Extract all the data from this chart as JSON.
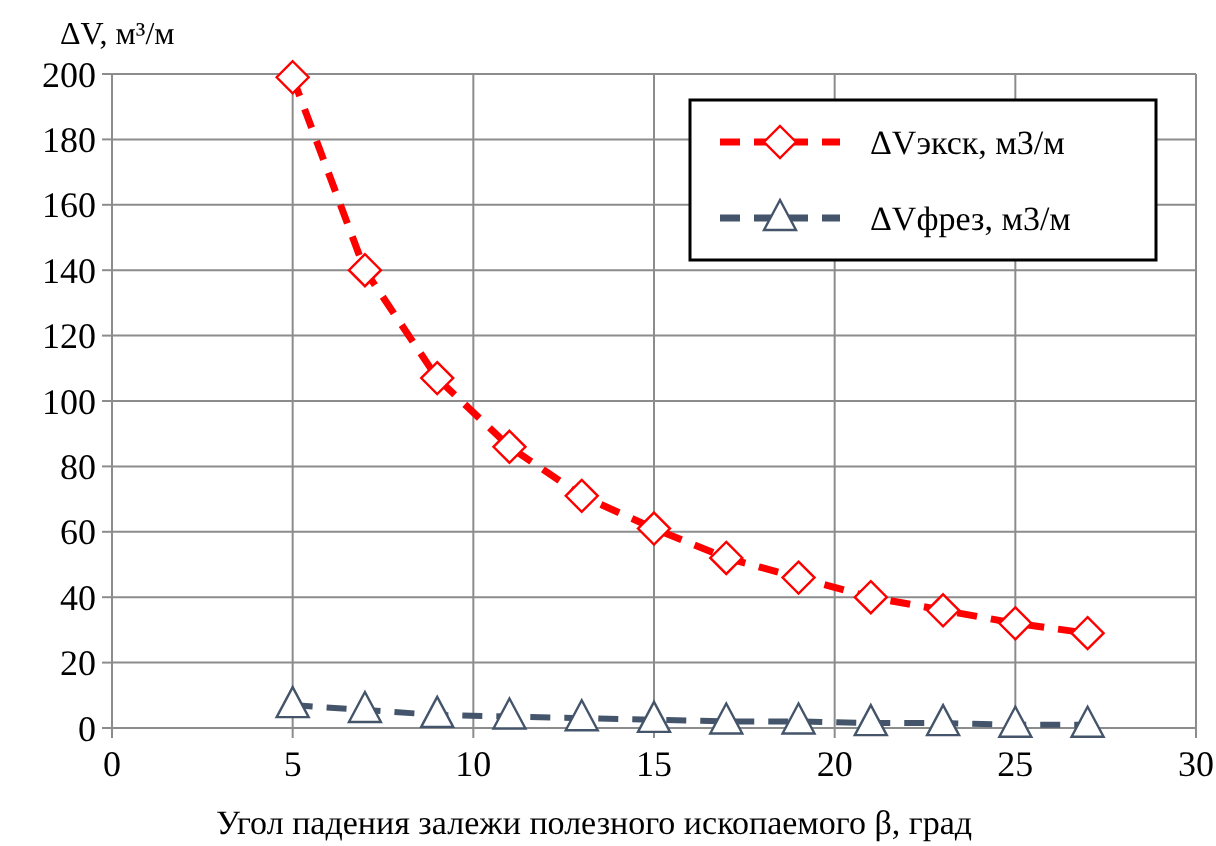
{
  "chart_data": {
    "type": "line",
    "ylabel": "ΔV, м³/м",
    "xlabel": "Угол падения залежи полезного ископаемого β, град",
    "xlim": [
      0,
      30
    ],
    "xticks": [
      0,
      5,
      10,
      15,
      20,
      25,
      30
    ],
    "ylim": [
      0,
      200
    ],
    "yticks": [
      0,
      20,
      40,
      60,
      80,
      100,
      120,
      140,
      160,
      180,
      200
    ],
    "grid": true,
    "legend": "top right",
    "x": [
      5,
      7,
      9,
      11,
      13,
      15,
      17,
      19,
      21,
      23,
      25,
      27
    ],
    "series": [
      {
        "name": "ΔVэкск, м3/м",
        "color": "#ff0000",
        "marker": "diamond",
        "line_style": "dashed",
        "values": [
          199,
          140,
          107,
          86,
          71,
          61,
          52,
          46,
          40,
          36,
          32,
          29
        ]
      },
      {
        "name": "ΔVфрез, м3/м",
        "color": "#44546a",
        "marker": "triangle",
        "line_style": "dashed",
        "values": [
          7,
          5.5,
          4,
          3.5,
          3,
          2.5,
          2,
          2,
          1.5,
          1.5,
          1,
          1
        ]
      }
    ]
  }
}
